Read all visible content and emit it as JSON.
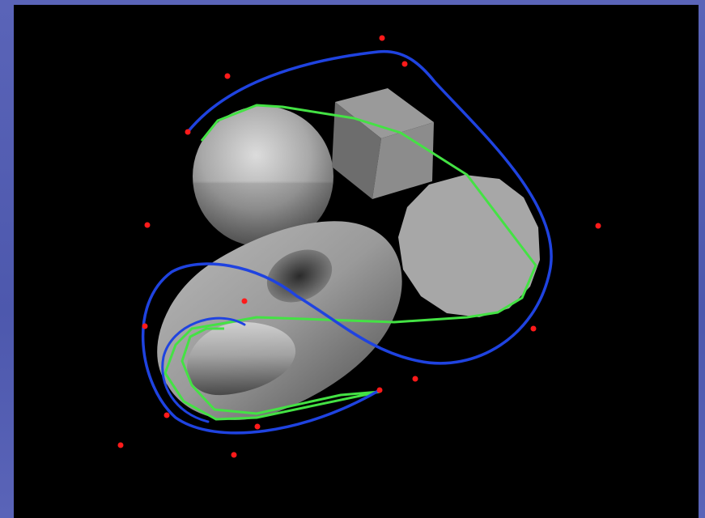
{
  "scene": {
    "background_color": "#000000",
    "frame_color": "#5a64b4",
    "objects": [
      "sphere",
      "cube",
      "disc",
      "torus"
    ],
    "curve_colors": {
      "spline": "#1f43e0",
      "control_polygon": "#44e244",
      "control_points": "#ff1a1a"
    }
  }
}
